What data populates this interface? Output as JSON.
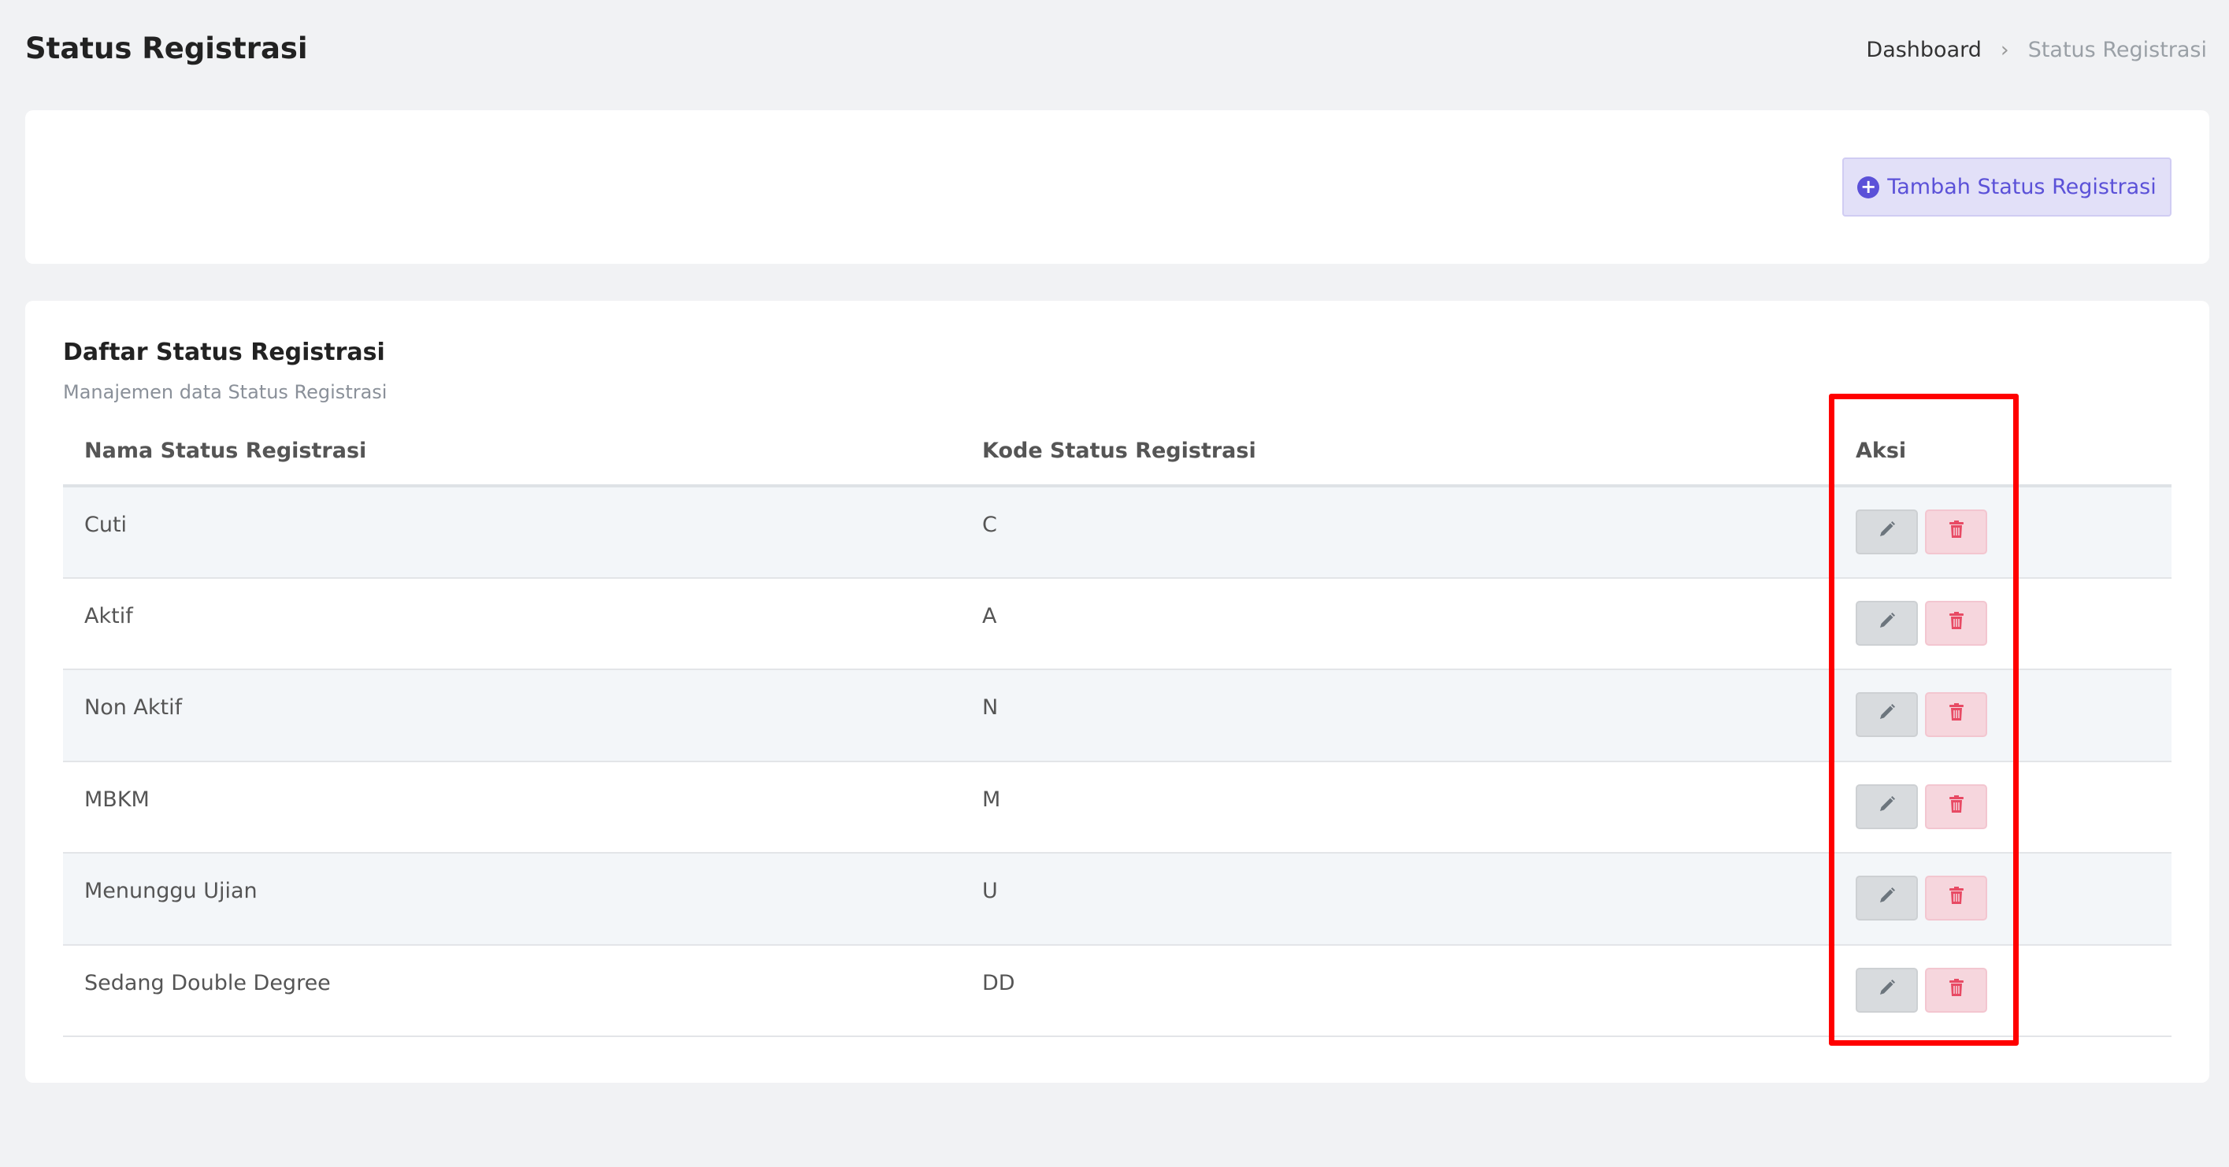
{
  "header": {
    "title": "Status Registrasi",
    "breadcrumb": [
      "Dashboard",
      "Status Registrasi"
    ],
    "breadcrumb_separator": "›"
  },
  "toolbar": {
    "add_label": "Tambah Status Registrasi",
    "add_icon": "plus-circle-icon",
    "accent": "#5b51d8"
  },
  "list": {
    "title": "Daftar Status Registrasi",
    "subtitle": "Manajemen data Status Registrasi",
    "columns": [
      "Nama Status Registrasi",
      "Kode Status Registrasi",
      "Aksi"
    ],
    "rows": [
      {
        "name": "Cuti",
        "code": "C"
      },
      {
        "name": "Aktif",
        "code": "A"
      },
      {
        "name": "Non Aktif",
        "code": "N"
      },
      {
        "name": "MBKM",
        "code": "M"
      },
      {
        "name": "Menunggu Ujian",
        "code": "U"
      },
      {
        "name": "Sedang Double Degree",
        "code": "DD"
      }
    ],
    "row_actions": [
      "pencil-icon",
      "trash-icon"
    ]
  },
  "highlight_color": "#ff0000"
}
